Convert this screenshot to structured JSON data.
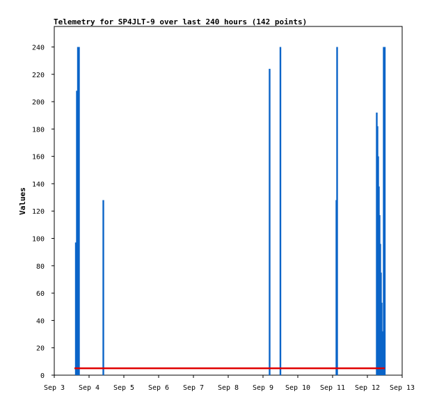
{
  "chart_data": {
    "type": "bar",
    "title": "Telemetry for SP4JLT-9 over last 240 hours (142 points)",
    "xlabel": "",
    "ylabel": "Values",
    "ylim": [
      0,
      255
    ],
    "xlim": [
      0,
      10
    ],
    "x_ticks": [
      {
        "label": "Sep 3",
        "x": 0
      },
      {
        "label": "Sep 4",
        "x": 1
      },
      {
        "label": "Sep 5",
        "x": 2
      },
      {
        "label": "Sep 6",
        "x": 3
      },
      {
        "label": "Sep 7",
        "x": 4
      },
      {
        "label": "Sep 8",
        "x": 5
      },
      {
        "label": "Sep 9",
        "x": 6
      },
      {
        "label": "Sep 10",
        "x": 7
      },
      {
        "label": "Sep 11",
        "x": 8
      },
      {
        "label": "Sep 12",
        "x": 9
      },
      {
        "label": "Sep 13",
        "x": 10
      }
    ],
    "y_ticks": [
      0,
      20,
      40,
      60,
      80,
      100,
      120,
      140,
      160,
      180,
      200,
      220,
      240
    ],
    "series": [
      {
        "color": "#0a64c8",
        "style": "bars",
        "points": [
          {
            "x": 0.62,
            "y": 97
          },
          {
            "x": 0.65,
            "y": 208
          },
          {
            "x": 0.68,
            "y": 240
          },
          {
            "x": 0.71,
            "y": 240
          },
          {
            "x": 1.41,
            "y": 128
          },
          {
            "x": 6.19,
            "y": 224
          },
          {
            "x": 6.5,
            "y": 240
          },
          {
            "x": 8.11,
            "y": 128
          },
          {
            "x": 8.13,
            "y": 240
          },
          {
            "x": 9.27,
            "y": 192
          },
          {
            "x": 9.29,
            "y": 182
          },
          {
            "x": 9.31,
            "y": 160
          },
          {
            "x": 9.33,
            "y": 138
          },
          {
            "x": 9.35,
            "y": 117
          },
          {
            "x": 9.37,
            "y": 96
          },
          {
            "x": 9.39,
            "y": 75
          },
          {
            "x": 9.41,
            "y": 53
          },
          {
            "x": 9.43,
            "y": 32
          },
          {
            "x": 9.45,
            "y": 11
          },
          {
            "x": 9.47,
            "y": 240
          },
          {
            "x": 9.5,
            "y": 240
          }
        ]
      },
      {
        "color": "#e00000",
        "style": "line",
        "points": [
          {
            "x": 0.58,
            "y": 5
          },
          {
            "x": 9.5,
            "y": 5
          }
        ]
      }
    ],
    "grid": false
  }
}
